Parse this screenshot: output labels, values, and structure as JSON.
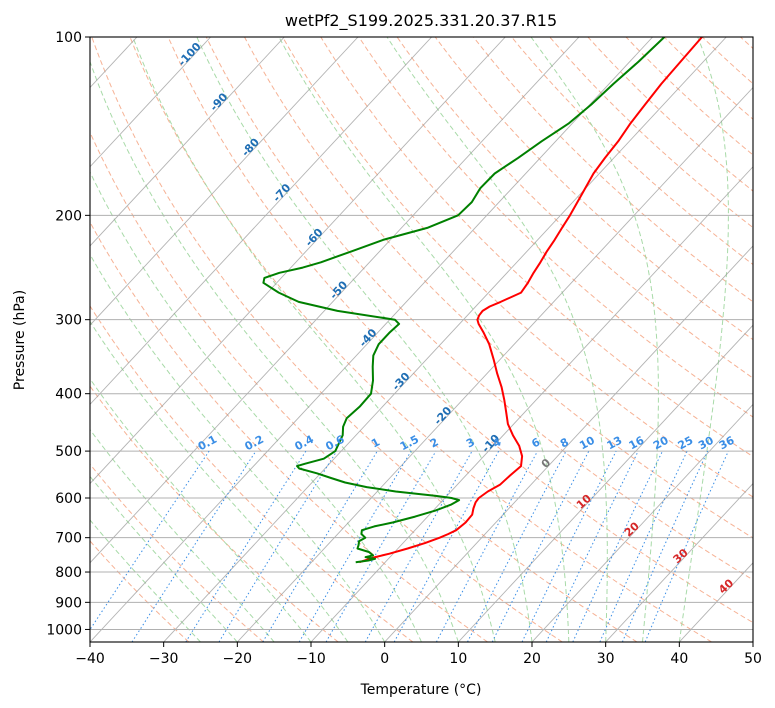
{
  "colors": {
    "temperature": "#ff0000",
    "dewpoint": "#008000",
    "isobar_grid": "#b0b0b0",
    "isotherm": "#9a9a9a",
    "dry_adiabat": "#f4a582",
    "moist_adiabat": "#9fd69f",
    "mixing_ratio": "#3a8ee6",
    "isotherm_label": "#1f6eb4",
    "mixing_label": "#3a8ee6",
    "adiabat_label": "#d62728",
    "frame": "#000000"
  },
  "chart_data": {
    "type": "line",
    "title": "wetPf2_S199.2025.331.20.37.R15",
    "xlabel": "Temperature (°C)",
    "ylabel": "Pressure (hPa)",
    "xlim": [
      -40,
      50
    ],
    "ylim": [
      1050,
      100
    ],
    "y_scale": "log",
    "skew": true,
    "grid": true,
    "x_ticks": [
      -40,
      -30,
      -20,
      -10,
      0,
      10,
      20,
      30,
      40,
      50
    ],
    "y_ticks": [
      100,
      200,
      300,
      400,
      500,
      600,
      700,
      800,
      900,
      1000
    ],
    "series": [
      {
        "key": "temperature",
        "pressure": [
          770,
          765,
          755,
          745,
          730,
          715,
          700,
          690,
          680,
          660,
          640,
          625,
          610,
          600,
          585,
          570,
          550,
          530,
          510,
          490,
          470,
          450,
          430,
          410,
          390,
          370,
          350,
          330,
          315,
          305,
          300,
          295,
          290,
          285,
          280,
          270,
          260,
          250,
          240,
          230,
          220,
          210,
          200,
          185,
          170,
          160,
          150,
          140,
          130,
          120,
          110,
          100
        ],
        "values": [
          -13.5,
          -13,
          -12,
          -10.5,
          -8.7,
          -7,
          -5.7,
          -5,
          -4.4,
          -4.1,
          -4.2,
          -4.8,
          -5.3,
          -5.4,
          -5,
          -4.2,
          -4,
          -3.7,
          -4.8,
          -6.5,
          -8.7,
          -10.8,
          -12.5,
          -14.3,
          -16.3,
          -18.6,
          -20.9,
          -23.4,
          -25.7,
          -27.4,
          -28.1,
          -28.4,
          -28.5,
          -28.1,
          -27.2,
          -25.6,
          -25.9,
          -26.4,
          -26.8,
          -27.3,
          -27.7,
          -28.2,
          -28.7,
          -29.7,
          -30.8,
          -31.2,
          -31.5,
          -32.1,
          -32.5,
          -32.9,
          -33.1,
          -33.3
        ]
      },
      {
        "key": "dewpoint",
        "pressure": [
          770,
          765,
          760,
          755,
          750,
          740,
          730,
          720,
          710,
          700,
          690,
          680,
          670,
          660,
          645,
          630,
          615,
          605,
          600,
          595,
          585,
          575,
          565,
          555,
          545,
          535,
          530,
          525,
          515,
          500,
          485,
          470,
          455,
          440,
          420,
          400,
          380,
          360,
          345,
          330,
          315,
          305,
          300,
          290,
          280,
          270,
          260,
          255,
          250,
          245,
          240,
          235,
          230,
          220,
          210,
          200,
          190,
          180,
          170,
          160,
          150,
          140,
          130,
          120,
          110,
          100
        ],
        "values": [
          -14,
          -12.5,
          -11.8,
          -13.3,
          -12.5,
          -13.5,
          -15.5,
          -15.8,
          -16.2,
          -15.8,
          -16.8,
          -17.2,
          -16,
          -14,
          -11.7,
          -9.7,
          -8.3,
          -7.8,
          -9.1,
          -11.5,
          -17.5,
          -22,
          -25.5,
          -28,
          -30.5,
          -33.5,
          -34.1,
          -33.3,
          -31.4,
          -30.8,
          -31.3,
          -31.8,
          -32.8,
          -33.4,
          -33.1,
          -33.2,
          -34.6,
          -36.4,
          -37.7,
          -38.4,
          -38.4,
          -38.2,
          -39.3,
          -48.2,
          -54.6,
          -58.5,
          -61.8,
          -62.3,
          -60.9,
          -58.4,
          -56.6,
          -55.2,
          -53.8,
          -51,
          -46.5,
          -43.9,
          -43.7,
          -44.3,
          -44.2,
          -43,
          -41.9,
          -40.5,
          -39.8,
          -39.4,
          -38.8,
          -38.4
        ]
      }
    ],
    "isotherm_labels": [
      "-100",
      "-90",
      "-80",
      "-70",
      "-60",
      "-50",
      "-40",
      "-30",
      "-20",
      "-10"
    ],
    "isotherm_label_values": [
      -100,
      -90,
      -80,
      -70,
      -60,
      -50,
      -40,
      -30,
      -20,
      -10
    ],
    "isotherm_label_pressures": [
      108,
      130,
      155,
      185,
      220,
      270,
      325,
      385,
      440,
      490
    ],
    "mixing_ratio_labels": [
      "0.1",
      "0.2",
      "0.4",
      "0.6",
      "1",
      "1.5",
      "2",
      "3",
      "4",
      "6",
      "8",
      "10",
      "13",
      "16",
      "20",
      "25",
      "30",
      "36"
    ],
    "mixing_ratio_values": [
      0.1,
      0.2,
      0.4,
      0.6,
      1,
      1.5,
      2,
      3,
      4,
      6,
      8,
      10,
      13,
      16,
      20,
      25,
      30,
      36
    ],
    "adiabat_labels": [
      "0",
      "10",
      "20",
      "30",
      "40"
    ],
    "adiabat_label_values": [
      0,
      10,
      20,
      30,
      40
    ],
    "adiabat_label_pressures": [
      530,
      615,
      685,
      760,
      855
    ]
  }
}
